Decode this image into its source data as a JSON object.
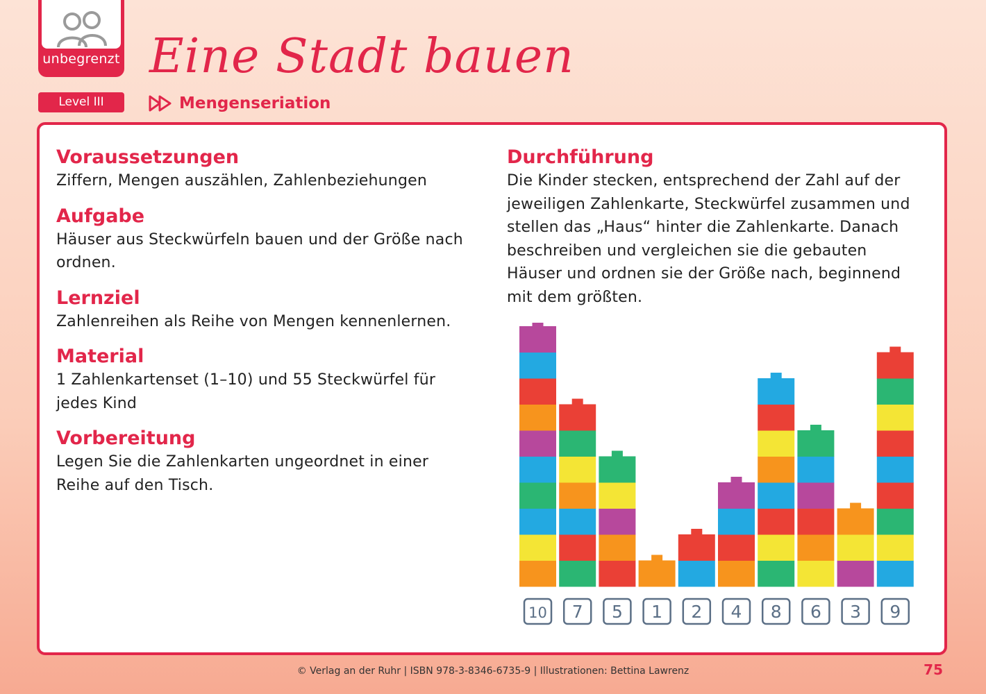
{
  "badge": {
    "label": "unbegrenzt",
    "icon": "people-icon"
  },
  "title": "Eine Stadt bauen",
  "level": "Level III",
  "topic": {
    "icon": "fast-forward-icon",
    "label": "Mengenseriation"
  },
  "sections_left": [
    {
      "heading": "Voraussetzungen",
      "text": "Ziffern, Mengen auszählen, Zahlenbeziehungen"
    },
    {
      "heading": "Aufgabe",
      "text": "Häuser aus Steckwürfeln bauen und der Größe nach ordnen."
    },
    {
      "heading": "Lernziel",
      "text": "Zahlenreihen als Reihe von Mengen kennenlernen."
    },
    {
      "heading": "Material",
      "text": "1 Zahlenkartenset (1–10) und 55 Steckwürfel für jedes Kind"
    },
    {
      "heading": "Vorbereitung",
      "text": "Legen Sie die Zahlenkarten ungeordnet in einer Reihe auf den Tisch."
    }
  ],
  "section_right": {
    "heading": "Durchführung",
    "text": "Die Kinder stecken, entsprechend der Zahl auf der jeweiligen Zahlenkarte, Steckwürfel zusammen und stellen das „Haus“ hinter die Zahlenkarte. Danach beschreiben und vergleichen sie die gebauten Häuser und ordnen sie der Größe nach, beginnend mit dem größten."
  },
  "cube_colors": {
    "orange": "#f7941d",
    "yellow": "#f4e535",
    "blue": "#23a9e1",
    "green": "#2bb673",
    "purple": "#b7489c",
    "red": "#ea4036"
  },
  "chart_data": {
    "type": "bar",
    "categories": [
      "10",
      "7",
      "5",
      "1",
      "2",
      "4",
      "8",
      "6",
      "3",
      "9"
    ],
    "values": [
      10,
      7,
      5,
      1,
      2,
      4,
      8,
      6,
      3,
      9
    ],
    "stacks": [
      [
        "orange",
        "yellow",
        "blue",
        "green",
        "blue",
        "purple",
        "orange",
        "red",
        "blue",
        "purple"
      ],
      [
        "green",
        "red",
        "blue",
        "orange",
        "yellow",
        "green",
        "red"
      ],
      [
        "red",
        "orange",
        "purple",
        "yellow",
        "green"
      ],
      [
        "orange"
      ],
      [
        "blue",
        "red"
      ],
      [
        "orange",
        "red",
        "blue",
        "purple"
      ],
      [
        "green",
        "yellow",
        "red",
        "blue",
        "orange",
        "yellow",
        "red",
        "blue"
      ],
      [
        "yellow",
        "orange",
        "red",
        "purple",
        "blue",
        "green"
      ],
      [
        "purple",
        "yellow",
        "orange"
      ],
      [
        "blue",
        "yellow",
        "green",
        "red",
        "blue",
        "red",
        "yellow",
        "green",
        "red"
      ]
    ]
  },
  "footer": "© Verlag an der Ruhr | ISBN 978-3-8346-6735-9 | Illustrationen: Bettina Lawrenz",
  "page_number": "75"
}
